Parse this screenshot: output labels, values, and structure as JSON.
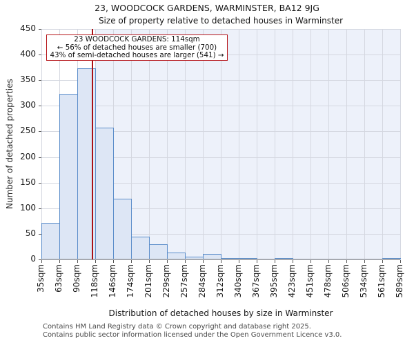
{
  "title": "23, WOODCOCK GARDENS, WARMINSTER, BA12 9JG",
  "subtitle": "Size of property relative to detached houses in Warminster",
  "annotation": {
    "line1": "23 WOODCOCK GARDENS: 114sqm",
    "line2": "← 56% of detached houses are smaller (700)",
    "line3": "43% of semi-detached houses are larger (541) →"
  },
  "footer": {
    "line1": "Contains HM Land Registry data © Crown copyright and database right 2025.",
    "line2": "Contains public sector information licensed under the Open Government Licence v3.0."
  },
  "chart_data": {
    "type": "bar",
    "title": "23, WOODCOCK GARDENS, WARMINSTER, BA12 9JG",
    "subtitle": "Size of property relative to detached houses in Warminster",
    "xlabel": "Distribution of detached houses by size in Warminster",
    "ylabel": "Number of detached properties",
    "bin_edges_sqm": [
      35,
      63,
      90,
      118,
      146,
      174,
      201,
      229,
      257,
      284,
      312,
      340,
      367,
      395,
      423,
      451,
      478,
      506,
      534,
      561,
      589
    ],
    "xtick_labels": [
      "35sqm",
      "63sqm",
      "90sqm",
      "118sqm",
      "146sqm",
      "174sqm",
      "201sqm",
      "229sqm",
      "257sqm",
      "284sqm",
      "312sqm",
      "340sqm",
      "367sqm",
      "395sqm",
      "423sqm",
      "451sqm",
      "478sqm",
      "506sqm",
      "534sqm",
      "561sqm",
      "589sqm"
    ],
    "values": [
      72,
      324,
      373,
      258,
      118,
      44,
      30,
      14,
      6,
      11,
      2,
      2,
      0,
      2,
      0,
      0,
      0,
      0,
      0,
      2
    ],
    "ytick_labels": [
      "0",
      "50",
      "100",
      "150",
      "200",
      "250",
      "300",
      "350",
      "400",
      "450"
    ],
    "ylim": [
      0,
      450
    ],
    "grid": true,
    "legend": false,
    "marker_value_sqm": 114,
    "shade_from_sqm": 118,
    "colors": {
      "bar_fill": "#dde6f5",
      "bar_edge": "#5b8dca",
      "marker_line": "#aa1116",
      "annotation_border": "#b51217",
      "shade": "#edf1fa",
      "grid": "#d4d7e0",
      "axis": "#a6a9b0"
    }
  }
}
